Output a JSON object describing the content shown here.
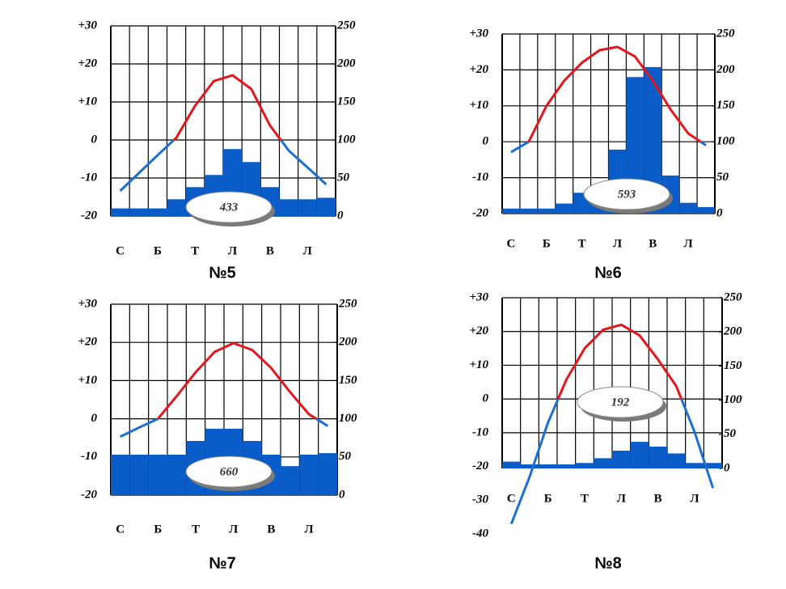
{
  "chart_data": [
    {
      "type": "climate",
      "title": "№5",
      "annotation": "433",
      "categories": [
        "С",
        null,
        "Б",
        null,
        "Т",
        null,
        "Л",
        null,
        "В",
        null,
        "Л",
        null
      ],
      "series": [
        {
          "kind": "line",
          "color": "#e3161e",
          "cold_color": "#1b6fd3",
          "values": [
            -13.4,
            -8.7,
            -4,
            0.6,
            9,
            15.5,
            17,
            13.4,
            3.8,
            -2.8,
            -7.2,
            -11.7
          ]
        },
        {
          "kind": "bar",
          "axis": "y2",
          "color": "#0a5cc8",
          "values": [
            10,
            10,
            10,
            22,
            38,
            54,
            88,
            71,
            38,
            22,
            22,
            24
          ]
        }
      ],
      "ylim": [
        -20,
        30
      ],
      "yticks": [
        {
          "value": 30,
          "label": "+30"
        },
        {
          "value": 20,
          "label": "+20"
        },
        {
          "value": 10,
          "label": "+10"
        },
        0,
        -10,
        -20
      ],
      "y2lim": [
        0,
        250
      ],
      "y2ticks": [
        0,
        50,
        100,
        150,
        200,
        250
      ],
      "grid": true
    },
    {
      "type": "climate",
      "title": "№6",
      "annotation": "593",
      "categories": [
        "С",
        null,
        "Б",
        null,
        "Т",
        null,
        "Л",
        null,
        "В",
        null,
        "Л",
        null
      ],
      "series": [
        {
          "kind": "line",
          "color": "#e3161e",
          "cold_color": "#1b6fd3",
          "values": [
            -2.9,
            0,
            10,
            17,
            22,
            25.5,
            26.4,
            23.7,
            17,
            9,
            2.3,
            -1
          ]
        },
        {
          "kind": "bar",
          "axis": "y2",
          "color": "#0a5cc8",
          "values": [
            7,
            7,
            7,
            14,
            29,
            38,
            89,
            190,
            204,
            53,
            15,
            9
          ]
        }
      ],
      "ylim": [
        -20,
        30
      ],
      "yticks": [
        {
          "value": 30,
          "label": "+30"
        },
        {
          "value": 20,
          "label": "+20"
        },
        {
          "value": 10,
          "label": "+10"
        },
        0,
        -10,
        -20
      ],
      "y2lim": [
        0,
        250
      ],
      "y2ticks": [
        0,
        50,
        100,
        150,
        200,
        250
      ],
      "grid": true
    },
    {
      "type": "climate",
      "title": "№7",
      "annotation": "660",
      "categories": [
        "С",
        null,
        "Б",
        null,
        "Т",
        null,
        "Л",
        null,
        "В",
        null,
        "Л",
        null
      ],
      "series": [
        {
          "kind": "line",
          "color": "#e3161e",
          "cold_color": "#1b6fd3",
          "values": [
            -4.7,
            -2.3,
            0,
            6,
            12.2,
            17.5,
            19.8,
            18,
            13.3,
            7,
            1.2,
            -1.9
          ]
        },
        {
          "kind": "bar",
          "axis": "y2",
          "color": "#0a5cc8",
          "values": [
            53,
            53,
            53,
            53,
            71,
            87,
            87,
            71,
            53,
            38,
            53,
            55
          ]
        }
      ],
      "ylim": [
        -20,
        30
      ],
      "yticks": [
        {
          "value": 30,
          "label": "+30"
        },
        {
          "value": 20,
          "label": "+20"
        },
        {
          "value": 10,
          "label": "+10"
        },
        0,
        -10,
        -20
      ],
      "y2lim": [
        0,
        250
      ],
      "y2ticks": [
        0,
        50,
        100,
        150,
        200,
        250
      ],
      "grid": true
    },
    {
      "type": "climate",
      "title": "№8",
      "annotation": "192",
      "categories": [
        "С",
        null,
        "Б",
        null,
        "Т",
        null,
        "Л",
        null,
        "В",
        null,
        "Л",
        null
      ],
      "series": [
        {
          "kind": "line",
          "color": "#e3161e",
          "cold_color": "#1b6fd3",
          "values": [
            -37,
            -23,
            -7,
            5.7,
            15,
            20.5,
            22,
            18.8,
            11.7,
            3.8,
            -9.8,
            -26.4
          ]
        },
        {
          "kind": "bar",
          "axis": "y2",
          "color": "#0a5cc8",
          "values": [
            10,
            6,
            6,
            6,
            8,
            15,
            26,
            39,
            32,
            22,
            8,
            8
          ]
        }
      ],
      "ylim": [
        -40,
        30
      ],
      "yticks": [
        {
          "value": 30,
          "label": "+30"
        },
        {
          "value": 20,
          "label": "+20"
        },
        {
          "value": 10,
          "label": "+10"
        },
        0,
        -10,
        -20,
        -30,
        -40
      ],
      "y2lim": [
        0,
        250
      ],
      "y2ticks": [
        0,
        50,
        100,
        150,
        200,
        250
      ],
      "grid": true
    }
  ]
}
